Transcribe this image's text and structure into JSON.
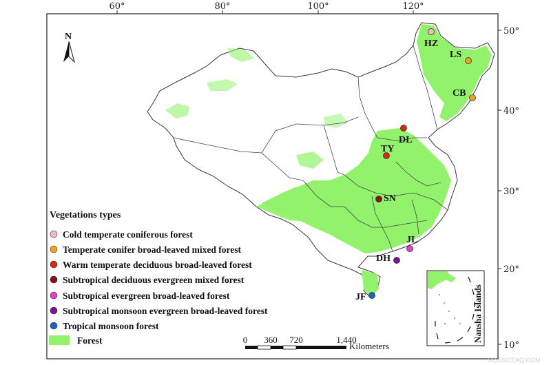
{
  "longitude_ticks": [
    "60°",
    "80°",
    "100°",
    "120°"
  ],
  "latitude_ticks": [
    "50°",
    "40°",
    "30°",
    "20°",
    "10°"
  ],
  "north_arrow": "N",
  "colors": {
    "forest": "#92f26c",
    "cold_temperate": "#f4b8bf",
    "temperate_mixed": "#f2a21c",
    "warm_temperate": "#d62a14",
    "subtropical_mixed": "#8b1010",
    "subtropical_evergreen": "#e63fc6",
    "subtropical_monsoon": "#7a169a",
    "tropical": "#1d63c4"
  },
  "sites": [
    {
      "code": "HZ",
      "color": "#f4b8bf"
    },
    {
      "code": "LS",
      "color": "#f2a21c"
    },
    {
      "code": "CB",
      "color": "#f2a21c"
    },
    {
      "code": "DL",
      "color": "#d62a14"
    },
    {
      "code": "TY",
      "color": "#d62a14"
    },
    {
      "code": "SN",
      "color": "#8b1010"
    },
    {
      "code": "JL",
      "color": "#e63fc6"
    },
    {
      "code": "DH",
      "color": "#7a169a"
    },
    {
      "code": "JF",
      "color": "#1d63c4"
    }
  ],
  "legend": {
    "title": "Vegetations types",
    "items": [
      {
        "label": "Cold temperate coniferous forest",
        "color": "#f4b8bf"
      },
      {
        "label": "Temperate conifer broad-leaved mixed forest",
        "color": "#f2a21c"
      },
      {
        "label": "Warm temperate deciduous broad-leaved forest",
        "color": "#d62a14"
      },
      {
        "label": "Subtropical deciduous evergreen mixed forest",
        "color": "#8b1010"
      },
      {
        "label": "Subtropical evergreen broad-leaved forest",
        "color": "#e63fc6"
      },
      {
        "label": "Subtropical monsoon evergreen broad-leaved forest",
        "color": "#7a169a"
      },
      {
        "label": "Tropical monsoon forest",
        "color": "#1d63c4"
      }
    ],
    "forest_label": "Forest"
  },
  "scale_bar": {
    "ticks": [
      "0",
      "360",
      "720",
      "1,440"
    ],
    "unit": "Kilometers"
  },
  "inset_label": "Nansha Islands",
  "watermark": "SCIENCEAQ.COM"
}
